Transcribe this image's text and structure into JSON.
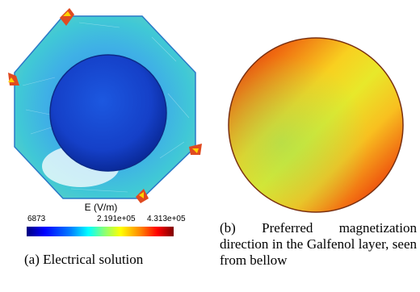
{
  "panel_a": {
    "colorbar": {
      "title": "E (V/m)",
      "tick_min": "6873",
      "tick_mid": "2.191e+05",
      "tick_max": "4.313e+05"
    },
    "caption": "(a) Electrical solution"
  },
  "panel_b": {
    "caption": "(b) Preferred magnetization direction in the Galfenol layer, seen from bellow"
  },
  "colors": {
    "background": "#ffffff",
    "colormap": [
      "#00007f",
      "#0000ff",
      "#0080ff",
      "#00ffff",
      "#7fff7f",
      "#ffff00",
      "#ff8000",
      "#ff0000",
      "#7f0000"
    ]
  }
}
